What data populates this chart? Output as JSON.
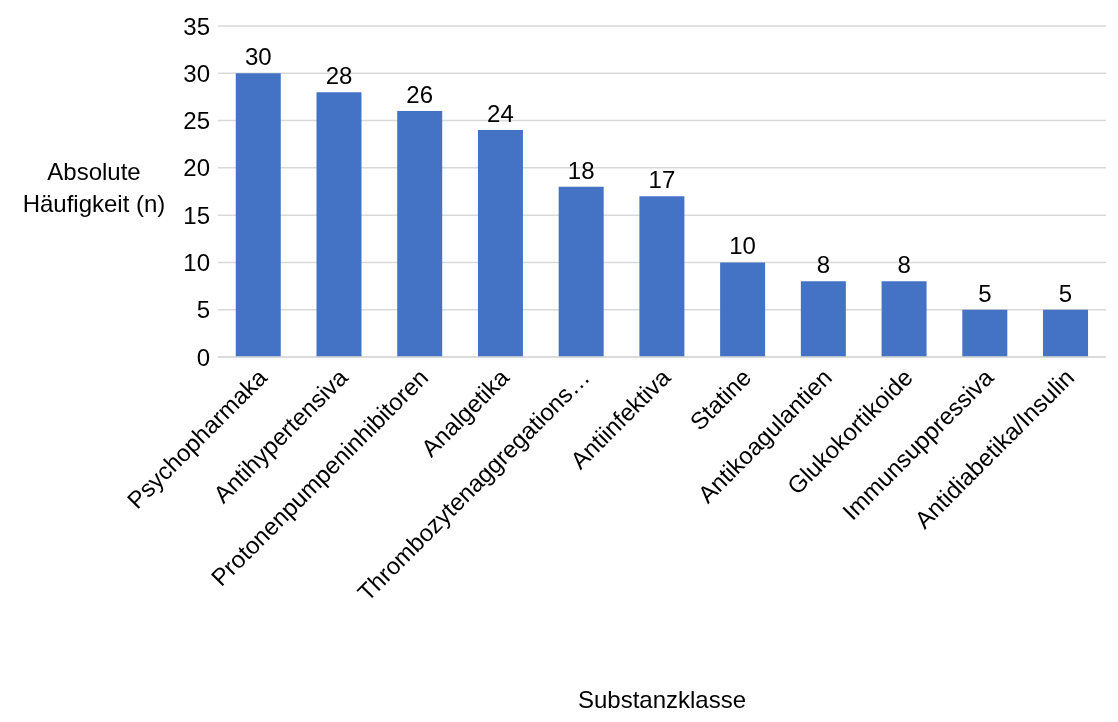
{
  "chart_data": {
    "type": "bar",
    "xlabel": "Substanzklasse",
    "ylabel": "Absolute Häufigkeit (n)",
    "categories": [
      "Psychopharmaka",
      "Antihypertensiva",
      "Protonenpumpeninhibitoren",
      "Analgetika",
      "Thrombozytenaggregations…",
      "Antiinfektiva",
      "Statine",
      "Antikoagulantien",
      "Glukokortikoide",
      "Immunsuppressiva",
      "Antidiabetika/Insulin"
    ],
    "values": [
      30,
      28,
      26,
      24,
      18,
      17,
      10,
      8,
      8,
      5,
      5
    ],
    "color": "#4472c4",
    "ylim": [
      0,
      35
    ],
    "yticks": [
      0,
      5,
      10,
      15,
      20,
      25,
      30,
      35
    ],
    "grid": "y",
    "data_labels": true,
    "legend": false
  }
}
